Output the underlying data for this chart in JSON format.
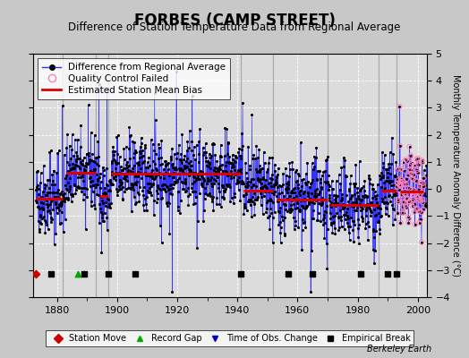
{
  "title": "FORBES (CAMP STREET)",
  "subtitle": "Difference of Station Temperature Data from Regional Average",
  "ylabel": "Monthly Temperature Anomaly Difference (°C)",
  "credit": "Berkeley Earth",
  "xlim": [
    1872,
    2003
  ],
  "ylim": [
    -4,
    5
  ],
  "yticks": [
    -4,
    -3,
    -2,
    -1,
    0,
    1,
    2,
    3,
    4,
    5
  ],
  "xticks": [
    1880,
    1900,
    1920,
    1940,
    1960,
    1980,
    2000
  ],
  "bg_color": "#c8c8c8",
  "plot_bg_color": "#dcdcdc",
  "grid_color": "#ffffff",
  "title_fontsize": 12,
  "subtitle_fontsize": 8.5,
  "legend_fontsize": 7.5,
  "ylabel_fontsize": 7,
  "tick_fontsize": 8,
  "credit_fontsize": 7,
  "bias_segments": [
    {
      "x": [
        1873,
        1882
      ],
      "y": [
        -0.35,
        -0.35
      ]
    },
    {
      "x": [
        1883,
        1893
      ],
      "y": [
        0.6,
        0.6
      ]
    },
    {
      "x": [
        1894,
        1897
      ],
      "y": [
        -0.25,
        -0.25
      ]
    },
    {
      "x": [
        1898,
        1941
      ],
      "y": [
        0.55,
        0.55
      ]
    },
    {
      "x": [
        1942,
        1952
      ],
      "y": [
        -0.05,
        -0.05
      ]
    },
    {
      "x": [
        1953,
        1970
      ],
      "y": [
        -0.4,
        -0.4
      ]
    },
    {
      "x": [
        1971,
        1987
      ],
      "y": [
        -0.6,
        -0.6
      ]
    },
    {
      "x": [
        1988,
        1993
      ],
      "y": [
        -0.05,
        -0.05
      ]
    },
    {
      "x": [
        1994,
        2002
      ],
      "y": [
        -0.1,
        -0.1
      ]
    }
  ],
  "vertical_lines": [
    1882,
    1893,
    1897,
    1941,
    1952,
    1970,
    1987,
    1993
  ],
  "station_moves_x": [
    1873
  ],
  "record_gaps_x": [
    1887
  ],
  "obs_changes_x": [],
  "empirical_breaks_x": [
    1878,
    1889,
    1897,
    1906,
    1941,
    1957,
    1965,
    1981,
    1990,
    1993
  ],
  "qc_start": 1993,
  "qc_end": 2002,
  "seed": 42,
  "bottom_legend_items": [
    {
      "marker": "D",
      "color": "#cc0000",
      "label": "Station Move"
    },
    {
      "marker": "^",
      "color": "#00aa00",
      "label": "Record Gap"
    },
    {
      "marker": "v",
      "color": "#0000cc",
      "label": "Time of Obs. Change"
    },
    {
      "marker": "s",
      "color": "#000000",
      "label": "Empirical Break"
    }
  ]
}
